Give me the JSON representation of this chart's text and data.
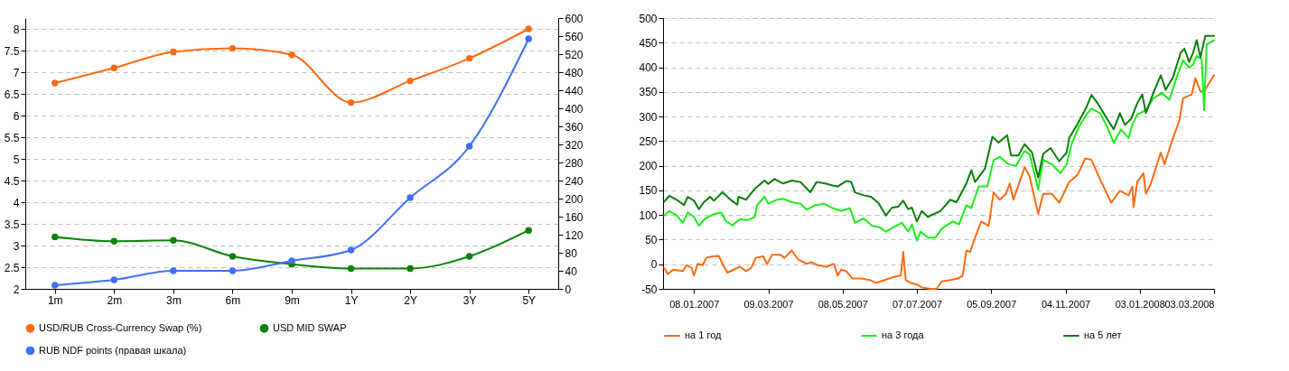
{
  "chart_data": [
    {
      "type": "line",
      "categories": [
        "1m",
        "2m",
        "3m",
        "6m",
        "9m",
        "1Y",
        "2Y",
        "3Y",
        "5Y"
      ],
      "series": [
        {
          "name": "USD/RUB Cross-Currency Swap (%)",
          "color": "#ff6a13",
          "values": [
            6.75,
            7.1,
            7.47,
            7.55,
            7.4,
            6.3,
            6.8,
            7.32,
            8.0
          ]
        },
        {
          "name": "USD MID SWAP",
          "color": "#0a820a",
          "values": [
            3.2,
            3.1,
            3.12,
            2.75,
            2.57,
            2.47,
            2.47,
            2.75,
            3.35
          ]
        },
        {
          "name": "RUB NDF points (правая шкала)",
          "color": "#3f6ff5",
          "axis": "y2",
          "values": [
            8,
            20,
            40,
            40,
            62,
            86,
            202,
            316,
            554
          ]
        }
      ],
      "ylim": [
        2,
        8.25
      ],
      "yticks": [
        2,
        2.5,
        3,
        3.5,
        4,
        4.5,
        5,
        5.5,
        6,
        6.5,
        7,
        7.5,
        8
      ],
      "y2lim": [
        0,
        600
      ],
      "y2ticks": [
        0,
        40,
        80,
        120,
        160,
        200,
        240,
        280,
        320,
        360,
        400,
        440,
        480,
        520,
        560,
        600
      ],
      "grid": "y",
      "legend": "bottom",
      "marker": "circle",
      "line_style": "solid"
    },
    {
      "type": "line",
      "series": [
        {
          "name": "на 1 год",
          "color": "#ff6a13",
          "x": [
            "2006-12-15",
            "2006-12-18",
            "2006-12-22",
            "2006-12-30",
            "2007-01-02",
            "2007-01-06",
            "2007-01-08",
            "2007-01-11",
            "2007-01-15",
            "2007-01-18",
            "2007-01-23",
            "2007-01-28",
            "2007-01-31",
            "2007-02-04",
            "2007-02-09",
            "2007-02-14",
            "2007-02-19",
            "2007-02-23",
            "2007-02-27",
            "2007-03-05",
            "2007-03-08",
            "2007-03-12",
            "2007-03-19",
            "2007-03-22",
            "2007-03-28",
            "2007-04-02",
            "2007-04-09",
            "2007-04-13",
            "2007-04-18",
            "2007-04-25",
            "2007-05-01",
            "2007-05-04",
            "2007-05-07",
            "2007-05-11",
            "2007-05-16",
            "2007-05-23",
            "2007-05-30",
            "2007-06-04",
            "2007-06-11",
            "2007-06-18",
            "2007-06-24",
            "2007-06-26",
            "2007-06-28",
            "2007-07-02",
            "2007-07-07",
            "2007-07-11",
            "2007-07-18",
            "2007-07-23",
            "2007-07-27",
            "2007-08-03",
            "2007-08-09",
            "2007-08-13",
            "2007-08-16",
            "2007-08-19",
            "2007-08-23",
            "2007-08-28",
            "2007-09-03",
            "2007-09-07",
            "2007-09-12",
            "2007-09-17",
            "2007-09-20",
            "2007-09-23",
            "2007-09-28",
            "2007-10-02",
            "2007-10-06",
            "2007-10-13",
            "2007-10-17",
            "2007-10-24",
            "2007-10-30",
            "2007-11-07",
            "2007-11-14",
            "2007-11-20",
            "2007-11-25",
            "2007-12-03",
            "2007-12-11",
            "2007-12-18",
            "2007-12-25",
            "2007-12-28",
            "2007-12-29",
            "2008-01-01",
            "2008-01-06",
            "2008-01-08",
            "2008-01-12",
            "2008-01-20",
            "2008-01-23",
            "2008-01-29",
            "2008-02-04",
            "2008-02-07",
            "2008-02-14",
            "2008-02-17",
            "2008-02-21",
            "2008-02-24",
            "2008-03-03"
          ],
          "values": [
            -8,
            -20,
            -11,
            -14,
            -2,
            -7,
            -23,
            1,
            -2,
            13,
            16,
            17,
            1,
            -17,
            -11,
            -5,
            -14,
            -8,
            13,
            16,
            0,
            19,
            19,
            13,
            28,
            10,
            1,
            4,
            -2,
            -5,
            1,
            -23,
            -11,
            -14,
            -29,
            -29,
            -32,
            -38,
            -32,
            -26,
            -23,
            25,
            -32,
            -38,
            -41,
            -47,
            -50,
            -50,
            -35,
            -32,
            -29,
            -23,
            28,
            25,
            54,
            87,
            78,
            146,
            131,
            143,
            164,
            131,
            167,
            197,
            179,
            102,
            143,
            143,
            125,
            167,
            182,
            215,
            212,
            167,
            125,
            149,
            140,
            158,
            116,
            167,
            185,
            143,
            164,
            227,
            203,
            250,
            292,
            337,
            345,
            378,
            351,
            351,
            384
          ]
        },
        {
          "name": "на 3 года",
          "color": "#19f019",
          "x": [
            "2006-12-15",
            "2006-12-19",
            "2006-12-25",
            "2006-12-30",
            "2007-01-03",
            "2007-01-08",
            "2007-01-12",
            "2007-01-17",
            "2007-01-24",
            "2007-01-30",
            "2007-02-03",
            "2007-02-08",
            "2007-02-14",
            "2007-02-21",
            "2007-02-26",
            "2007-02-28",
            "2007-03-06",
            "2007-03-09",
            "2007-03-16",
            "2007-03-21",
            "2007-03-28",
            "2007-04-04",
            "2007-04-09",
            "2007-04-16",
            "2007-04-23",
            "2007-04-30",
            "2007-05-07",
            "2007-05-14",
            "2007-05-18",
            "2007-05-25",
            "2007-06-01",
            "2007-06-07",
            "2007-06-12",
            "2007-06-18",
            "2007-06-25",
            "2007-06-30",
            "2007-07-03",
            "2007-07-07",
            "2007-07-10",
            "2007-07-16",
            "2007-07-22",
            "2007-07-27",
            "2007-08-05",
            "2007-08-10",
            "2007-08-16",
            "2007-08-20",
            "2007-08-26",
            "2007-09-02",
            "2007-09-07",
            "2007-09-12",
            "2007-09-19",
            "2007-09-25",
            "2007-10-02",
            "2007-10-06",
            "2007-10-13",
            "2007-10-17",
            "2007-10-24",
            "2007-10-31",
            "2007-11-05",
            "2007-11-09",
            "2007-11-15",
            "2007-11-21",
            "2007-11-25",
            "2007-12-02",
            "2007-12-08",
            "2007-12-13",
            "2007-12-19",
            "2007-12-25",
            "2007-12-28",
            "2008-01-01",
            "2008-01-08",
            "2008-01-14",
            "2008-01-21",
            "2008-01-27",
            "2008-02-02",
            "2008-02-07",
            "2008-02-12",
            "2008-02-15",
            "2008-02-18",
            "2008-02-22",
            "2008-02-24",
            "2008-02-26",
            "2008-03-03"
          ],
          "values": [
            99,
            108,
            99,
            84,
            105,
            96,
            78,
            93,
            102,
            105,
            87,
            79,
            91,
            90,
            96,
            120,
            137,
            123,
            131,
            133,
            126,
            123,
            111,
            120,
            123,
            114,
            108,
            114,
            84,
            93,
            78,
            75,
            66,
            75,
            84,
            66,
            81,
            48,
            66,
            54,
            54,
            72,
            87,
            81,
            120,
            114,
            158,
            158,
            212,
            218,
            203,
            200,
            230,
            224,
            152,
            212,
            203,
            185,
            203,
            244,
            280,
            304,
            316,
            307,
            277,
            247,
            274,
            256,
            283,
            304,
            313,
            337,
            348,
            334,
            381,
            414,
            399,
            405,
            423,
            417,
            313,
            446,
            455
          ]
        },
        {
          "name": "на 5 лет",
          "color": "#0a7d0a",
          "x": [
            "2006-12-15",
            "2006-12-19",
            "2006-12-25",
            "2006-12-31",
            "2007-01-03",
            "2007-01-08",
            "2007-01-12",
            "2007-01-16",
            "2007-01-21",
            "2007-01-24",
            "2007-01-31",
            "2007-02-07",
            "2007-02-12",
            "2007-02-13",
            "2007-02-19",
            "2007-02-26",
            "2007-03-06",
            "2007-03-09",
            "2007-03-14",
            "2007-03-21",
            "2007-03-28",
            "2007-04-04",
            "2007-04-09",
            "2007-04-12",
            "2007-04-17",
            "2007-04-24",
            "2007-04-30",
            "2007-05-04",
            "2007-05-11",
            "2007-05-15",
            "2007-05-18",
            "2007-05-25",
            "2007-05-31",
            "2007-06-06",
            "2007-06-12",
            "2007-06-17",
            "2007-06-22",
            "2007-06-26",
            "2007-06-30",
            "2007-07-03",
            "2007-07-07",
            "2007-07-11",
            "2007-07-16",
            "2007-07-18",
            "2007-07-26",
            "2007-08-03",
            "2007-08-08",
            "2007-08-16",
            "2007-08-20",
            "2007-08-23",
            "2007-08-31",
            "2007-09-06",
            "2007-09-11",
            "2007-09-18",
            "2007-09-21",
            "2007-09-27",
            "2007-10-02",
            "2007-10-08",
            "2007-10-13",
            "2007-10-17",
            "2007-10-23",
            "2007-10-30",
            "2007-11-05",
            "2007-11-07",
            "2007-11-14",
            "2007-11-21",
            "2007-11-25",
            "2007-11-30",
            "2007-12-07",
            "2007-12-13",
            "2007-12-18",
            "2007-12-22",
            "2007-12-27",
            "2008-01-01",
            "2008-01-05",
            "2008-01-08",
            "2008-01-14",
            "2008-01-20",
            "2008-01-24",
            "2008-01-30",
            "2008-02-05",
            "2008-02-08",
            "2008-02-12",
            "2008-02-15",
            "2008-02-18",
            "2008-02-21",
            "2008-02-25",
            "2008-03-03"
          ],
          "values": [
            127,
            139,
            131,
            120,
            137,
            129,
            112,
            126,
            137,
            129,
            146,
            130,
            121,
            137,
            131,
            153,
            170,
            163,
            173,
            164,
            170,
            167,
            154,
            146,
            167,
            164,
            160,
            158,
            169,
            167,
            146,
            140,
            137,
            124,
            99,
            115,
            117,
            129,
            112,
            115,
            87,
            108,
            96,
            99,
            108,
            131,
            126,
            164,
            191,
            167,
            194,
            259,
            247,
            262,
            221,
            221,
            244,
            227,
            176,
            224,
            236,
            209,
            227,
            256,
            286,
            319,
            344,
            327,
            298,
            274,
            307,
            283,
            295,
            327,
            345,
            307,
            348,
            384,
            354,
            381,
            429,
            438,
            411,
            429,
            455,
            420,
            464,
            464
          ]
        }
      ],
      "xlim": [
        "2006-12-14",
        "2008-03-03"
      ],
      "xticks": [
        {
          "value": "2007-01-08",
          "label": "08.01.2007"
        },
        {
          "value": "2007-03-09",
          "label": "09.03.2007"
        },
        {
          "value": "2007-05-08",
          "label": "08.05.2007"
        },
        {
          "value": "2007-07-07",
          "label": "07.07.2007"
        },
        {
          "value": "2007-09-05",
          "label": "05.09.2007"
        },
        {
          "value": "2007-11-04",
          "label": "04.11.2007"
        },
        {
          "value": "2008-01-03",
          "label": "03.01.2008"
        },
        {
          "value": "2008-03-03",
          "label": "03.03.2008"
        }
      ],
      "ylim": [
        -50,
        500
      ],
      "yticks": [
        -50,
        0,
        50,
        100,
        150,
        200,
        250,
        300,
        350,
        400,
        450,
        500
      ],
      "grid": "y",
      "legend": "bottom",
      "marker": "none",
      "line_style": "solid"
    }
  ]
}
